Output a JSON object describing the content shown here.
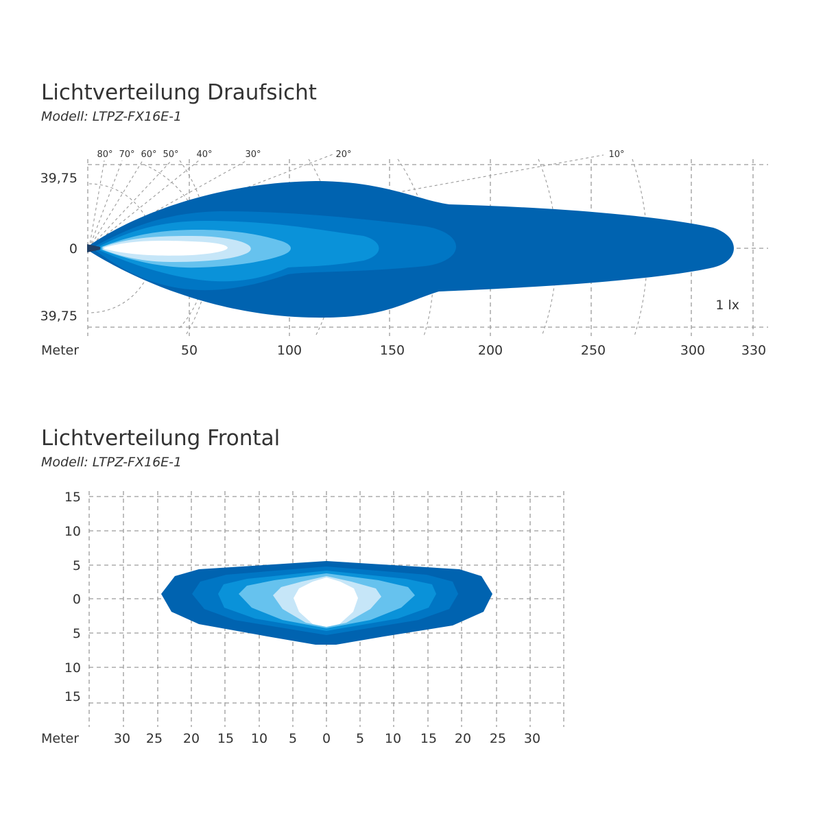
{
  "charts": [
    {
      "title": "Lichtverteilung Draufsicht",
      "subtitle": "Modell: LTPZ-FX16E-1"
    },
    {
      "title": "Lichtverteilung Frontal",
      "subtitle": "Modell: LTPZ-FX16E-1"
    }
  ],
  "chart_data": [
    {
      "type": "area",
      "title": "Lichtverteilung Draufsicht",
      "subtitle": "Modell: LTPZ-FX16E-1",
      "xlabel": "Meter",
      "x_ticks": [
        50,
        100,
        150,
        200,
        250,
        300,
        330
      ],
      "y_ticks": [
        "39,75",
        "0",
        "39,75"
      ],
      "angle_labels": [
        "80°",
        "70°",
        "60°",
        "50°",
        "40°",
        "30°",
        "20°",
        "10°"
      ],
      "annotation": "1 lx",
      "colors": [
        "#0063b0",
        "#0076c4",
        "#0a92d9",
        "#66c2ee",
        "#c6e6f8",
        "#ffffff"
      ],
      "zones": [
        {
          "level": 1,
          "color": "#0063b0",
          "max_distance": 323
        },
        {
          "level": 2,
          "color": "#0076c4",
          "max_distance": 185
        },
        {
          "level": 3,
          "color": "#0a92d9",
          "max_distance": 140
        },
        {
          "level": 4,
          "color": "#66c2ee",
          "max_distance": 98
        },
        {
          "level": 5,
          "color": "#c6e6f8",
          "max_distance": 70
        },
        {
          "level": 6,
          "color": "#ffffff",
          "max_distance": 68
        }
      ]
    },
    {
      "type": "area",
      "title": "Lichtverteilung Frontal",
      "subtitle": "Modell: LTPZ-FX16E-1",
      "xlabel": "Meter",
      "x_ticks": [
        "30",
        "25",
        "20",
        "15",
        "10",
        "5",
        "0",
        "5",
        "10",
        "15",
        "20",
        "25",
        "30"
      ],
      "y_ticks": [
        "15",
        "10",
        "5",
        "0",
        "5",
        "10",
        "15"
      ],
      "colors": [
        "#0063b0",
        "#0076c4",
        "#0a92d9",
        "#66c2ee",
        "#c6e6f8",
        "#ffffff"
      ],
      "zones": [
        {
          "level": 1,
          "color": "#0063b0",
          "half_width": 24.5
        },
        {
          "level": 2,
          "color": "#0076c4",
          "half_width": 20
        },
        {
          "level": 3,
          "color": "#0a92d9",
          "half_width": 16
        },
        {
          "level": 4,
          "color": "#66c2ee",
          "half_width": 13
        },
        {
          "level": 5,
          "color": "#c6e6f8",
          "half_width": 8
        },
        {
          "level": 6,
          "color": "#ffffff",
          "half_width": 5
        }
      ]
    }
  ]
}
